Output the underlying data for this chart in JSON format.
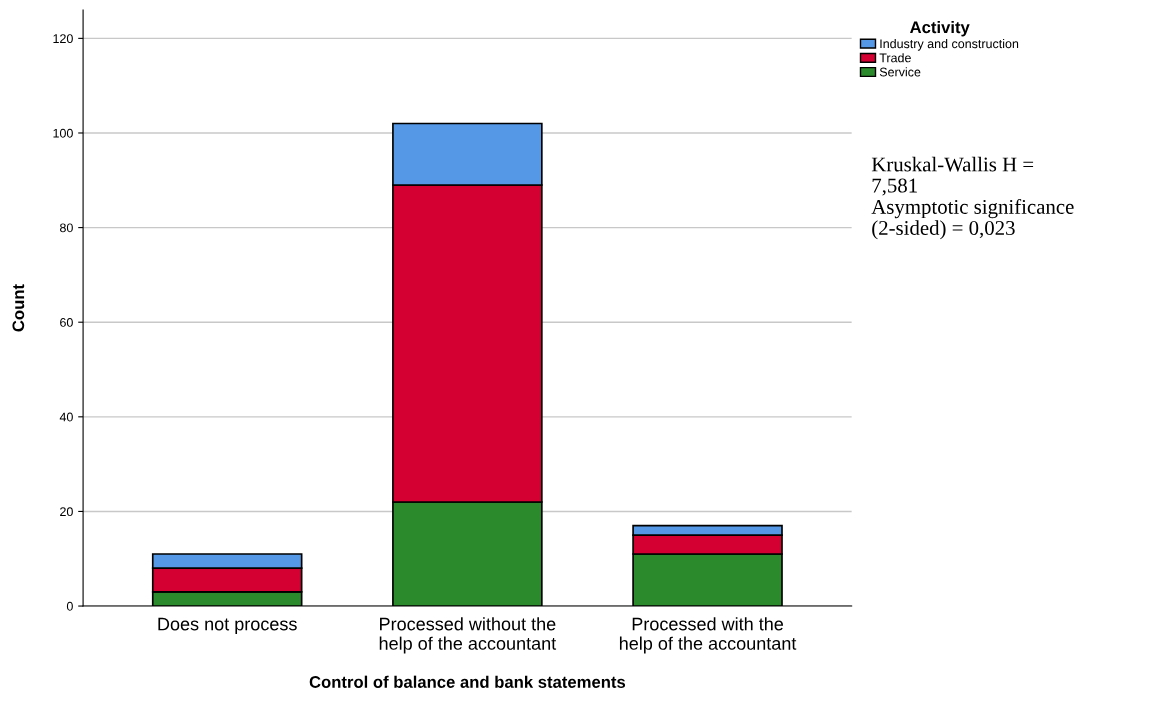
{
  "chart_data": {
    "type": "bar",
    "stacked": true,
    "xlabel": "Control of balance and bank statements",
    "ylabel": "Count",
    "categories": [
      "Does not process",
      "Processed without the\nhelp of the accountant",
      "Processed with the\nhelp of the accountant"
    ],
    "series": [
      {
        "name": "Service",
        "color": "#2b8a2b",
        "values": [
          3,
          22,
          11
        ]
      },
      {
        "name": "Trade",
        "color": "#d50032",
        "values": [
          5,
          67,
          4
        ]
      },
      {
        "name": "Industry and construction",
        "color": "#5599e6",
        "values": [
          3,
          13,
          2
        ]
      }
    ],
    "ylim": [
      0,
      126
    ],
    "yticks": [
      0,
      20,
      40,
      60,
      80,
      100,
      120
    ],
    "grid": "y",
    "legend": "top right",
    "legend_title": "Activity",
    "annotations": [
      "Kruskal-Wallis H =\n7,581\nAsymptotic significance\n(2-sided) = 0,023"
    ]
  }
}
